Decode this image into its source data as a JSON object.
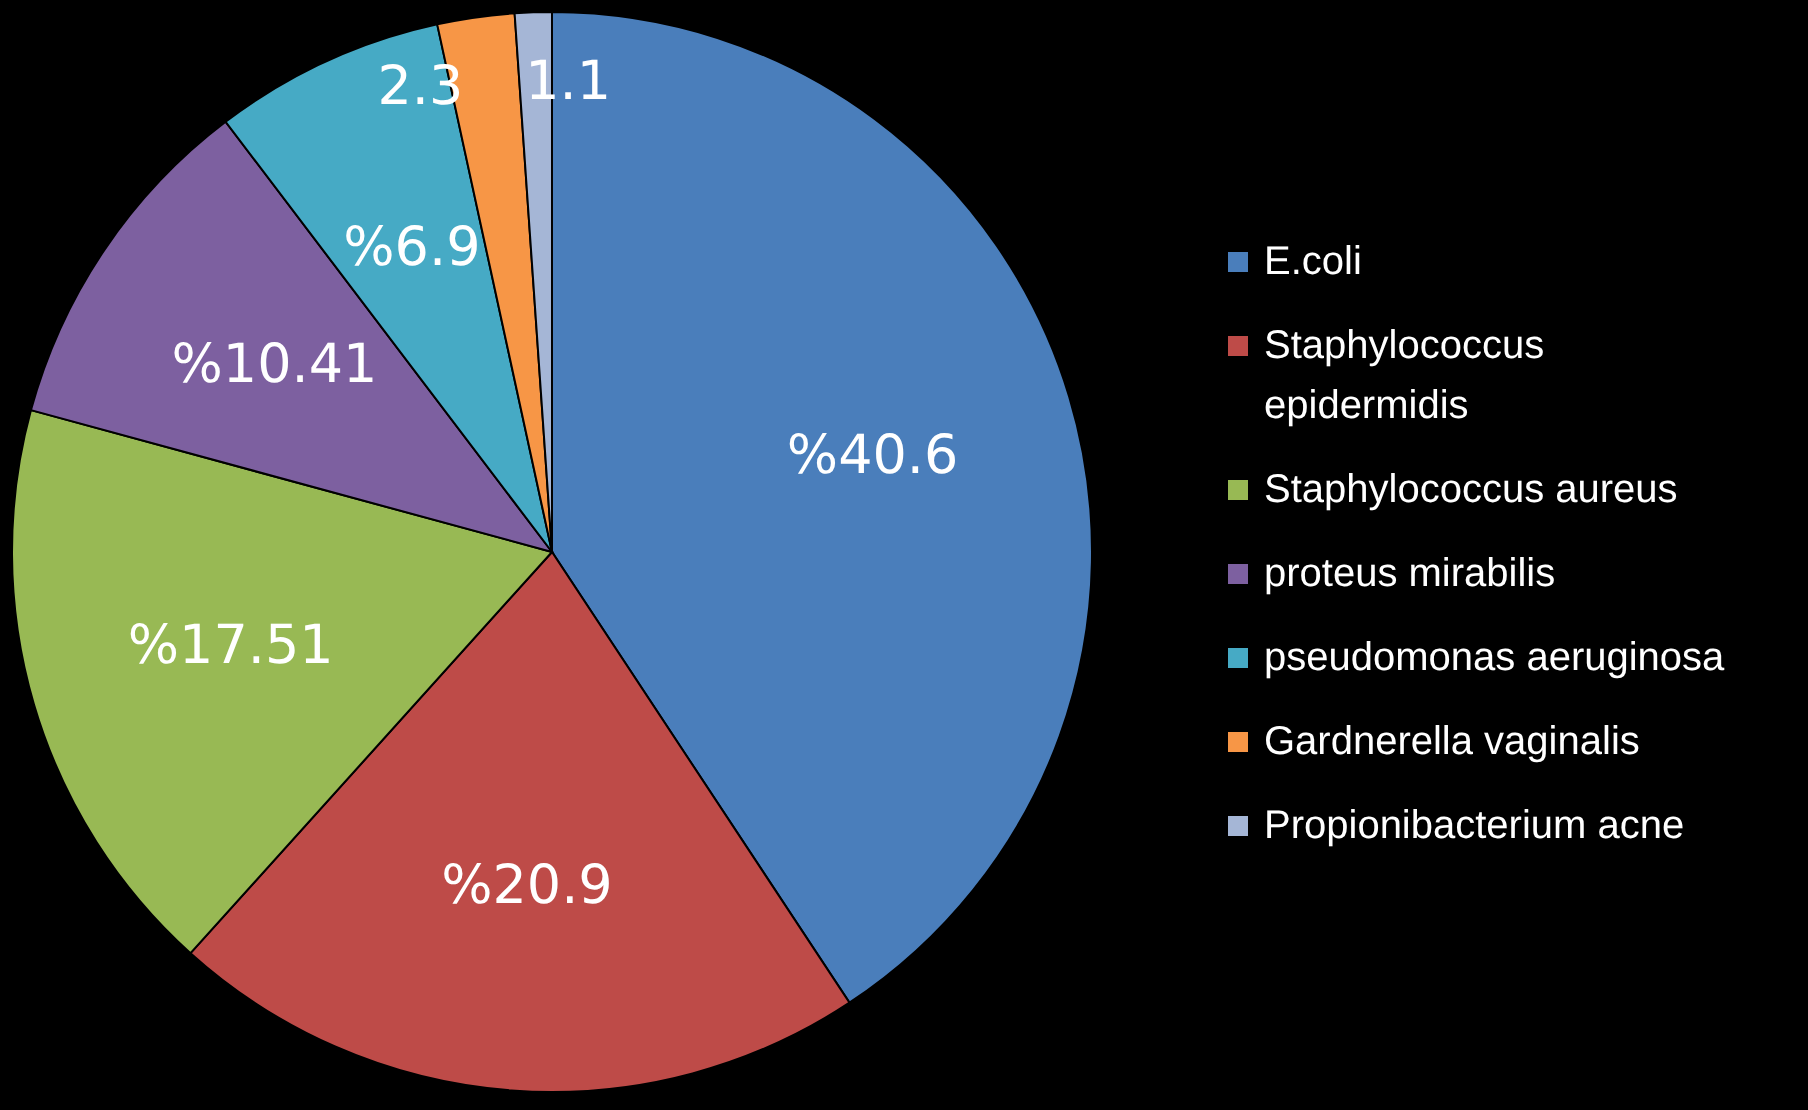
{
  "chart_data": {
    "type": "pie",
    "categories": [
      "E.coli",
      "Staphylococcus epidermidis",
      "Staphylococcus aureus",
      "proteus mirabilis",
      "pseudomonas aeruginosa",
      "Gardnerella vaginalis",
      "Propionibacterium acne"
    ],
    "values": [
      40.6,
      20.9,
      17.51,
      10.41,
      6.9,
      2.3,
      1.1
    ],
    "value_labels": [
      "%40.6",
      "%20.9",
      "%17.51",
      "%10.41",
      "%6.9",
      "2.3",
      "1.1"
    ],
    "colors": [
      "#4a7ebb",
      "#be4b48",
      "#98b954",
      "#7d60a0",
      "#46aac5",
      "#f79646",
      "#a5b6d6"
    ],
    "legend": "right"
  }
}
